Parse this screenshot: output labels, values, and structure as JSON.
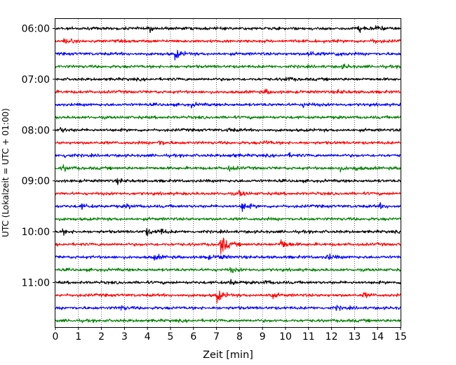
{
  "chart_data": {
    "type": "line",
    "title": "",
    "xlabel": "Zeit  [min]",
    "ylabel": "UTC (Lokalzeit = UTC + 01:00)",
    "xlim": [
      0,
      15
    ],
    "x_ticks": [
      0,
      1,
      2,
      3,
      4,
      5,
      6,
      7,
      8,
      9,
      10,
      11,
      12,
      13,
      14,
      15
    ],
    "x_grid": "dotted vertical lines at each minute",
    "y_start_time": "06:00",
    "row_interval_min": 15,
    "row_count": 24,
    "y_tick_labels": [
      "06:00",
      "07:00",
      "08:00",
      "09:00",
      "10:00",
      "11:00"
    ],
    "trace_colors": [
      "#000000",
      "#ff0000",
      "#0000ff",
      "#008000"
    ],
    "series": [
      {
        "start_utc": "06:00",
        "events": [
          {
            "t": 4.1,
            "amp": 0.45
          },
          {
            "t": 13.2,
            "amp": 0.5
          },
          {
            "t": 13.9,
            "amp": 0.45
          }
        ]
      },
      {
        "start_utc": "06:15",
        "events": [
          {
            "t": 0.4,
            "amp": 0.5
          },
          {
            "t": 13.8,
            "amp": 0.4
          }
        ]
      },
      {
        "start_utc": "06:30",
        "events": [
          {
            "t": 5.2,
            "amp": 0.9
          },
          {
            "t": 11.0,
            "amp": 0.7
          },
          {
            "t": 12.2,
            "amp": 0.5
          }
        ]
      },
      {
        "start_utc": "06:45",
        "events": [
          {
            "t": 12.5,
            "amp": 0.35
          }
        ]
      },
      {
        "start_utc": "07:00",
        "events": [
          {
            "t": 10.0,
            "amp": 0.4
          }
        ]
      },
      {
        "start_utc": "07:15",
        "events": [
          {
            "t": 9.1,
            "amp": 0.35
          },
          {
            "t": 12.3,
            "amp": 0.3
          }
        ]
      },
      {
        "start_utc": "07:30",
        "events": [
          {
            "t": 5.9,
            "amp": 0.3
          },
          {
            "t": 10.8,
            "amp": 0.45
          }
        ]
      },
      {
        "start_utc": "07:45",
        "events": []
      },
      {
        "start_utc": "08:00",
        "events": [
          {
            "t": 0.2,
            "amp": 0.45
          },
          {
            "t": 7.5,
            "amp": 0.3
          }
        ]
      },
      {
        "start_utc": "08:15",
        "events": [
          {
            "t": 4.5,
            "amp": 0.55
          },
          {
            "t": 9.1,
            "amp": 0.3
          }
        ]
      },
      {
        "start_utc": "08:30",
        "events": [
          {
            "t": 0.4,
            "amp": 0.35
          },
          {
            "t": 7.6,
            "amp": 0.3
          },
          {
            "t": 10.1,
            "amp": 0.3
          }
        ]
      },
      {
        "start_utc": "08:45",
        "events": [
          {
            "t": 0.3,
            "amp": 0.55
          },
          {
            "t": 7.5,
            "amp": 0.45
          },
          {
            "t": 12.3,
            "amp": 0.45
          },
          {
            "t": 13.0,
            "amp": 0.4
          }
        ]
      },
      {
        "start_utc": "09:00",
        "events": [
          {
            "t": 2.7,
            "amp": 0.4
          }
        ]
      },
      {
        "start_utc": "09:15",
        "events": [
          {
            "t": 8.0,
            "amp": 0.5
          }
        ]
      },
      {
        "start_utc": "09:30",
        "events": [
          {
            "t": 1.1,
            "amp": 0.4
          },
          {
            "t": 3.1,
            "amp": 0.4
          },
          {
            "t": 8.1,
            "amp": 0.95
          },
          {
            "t": 14.1,
            "amp": 0.4
          }
        ]
      },
      {
        "start_utc": "09:45",
        "events": []
      },
      {
        "start_utc": "10:00",
        "events": [
          {
            "t": 0.3,
            "amp": 0.4
          },
          {
            "t": 3.9,
            "amp": 0.75
          },
          {
            "t": 4.5,
            "amp": 0.65
          }
        ]
      },
      {
        "start_utc": "10:15",
        "events": [
          {
            "t": 7.2,
            "amp": 2.0
          },
          {
            "t": 9.8,
            "amp": 1.1
          }
        ]
      },
      {
        "start_utc": "10:30",
        "events": [
          {
            "t": 4.3,
            "amp": 0.45
          },
          {
            "t": 6.5,
            "amp": 0.45
          },
          {
            "t": 7.1,
            "amp": 0.4
          },
          {
            "t": 11.8,
            "amp": 0.55
          }
        ]
      },
      {
        "start_utc": "10:45",
        "events": [
          {
            "t": 7.6,
            "amp": 0.4
          }
        ]
      },
      {
        "start_utc": "11:00",
        "events": [
          {
            "t": 7.6,
            "amp": 0.5
          },
          {
            "t": 9.1,
            "amp": 0.35
          }
        ]
      },
      {
        "start_utc": "11:15",
        "events": [
          {
            "t": 7.0,
            "amp": 1.3
          },
          {
            "t": 9.3,
            "amp": 0.5
          },
          {
            "t": 13.4,
            "amp": 0.4
          }
        ]
      },
      {
        "start_utc": "11:30",
        "events": [
          {
            "t": 2.8,
            "amp": 0.45
          },
          {
            "t": 12.2,
            "amp": 0.3
          }
        ]
      },
      {
        "start_utc": "11:45",
        "events": []
      }
    ]
  }
}
